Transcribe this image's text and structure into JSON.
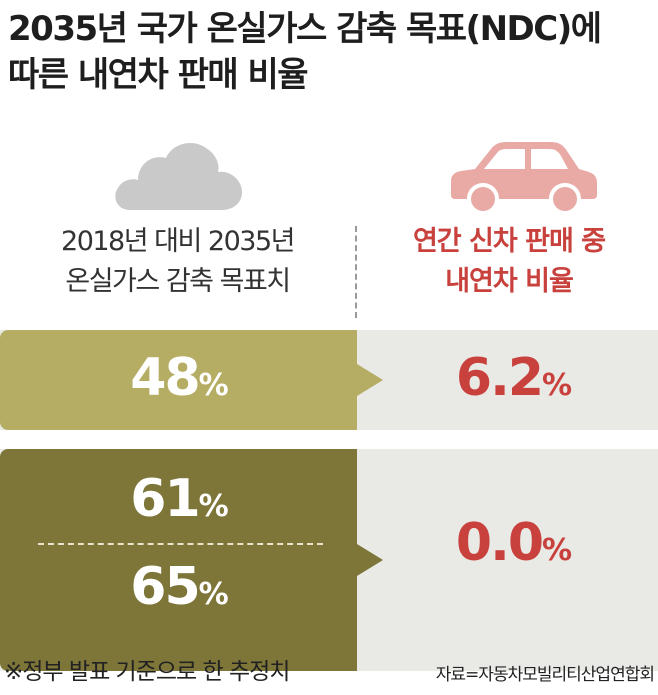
{
  "title": {
    "line1": "2035년 국가 온실가스 감축 목표(NDC)에",
    "line2": "따른 내연차 판매 비율"
  },
  "icons": {
    "left": "cloud-icon",
    "right": "car-icon"
  },
  "left_header": {
    "line1": "2018년 대비 2035년",
    "line2": "온실가스 감축 목표치"
  },
  "right_header": {
    "line1": "연간 신차 판매 중",
    "line2": "내연차 비율"
  },
  "rows": [
    {
      "targets": [
        {
          "value": "48",
          "unit": "%"
        }
      ],
      "share": {
        "value": "6.2",
        "unit": "%"
      }
    },
    {
      "targets": [
        {
          "value": "61",
          "unit": "%"
        },
        {
          "value": "65",
          "unit": "%"
        }
      ],
      "share": {
        "value": "0.0",
        "unit": "%"
      }
    }
  ],
  "footer": {
    "note": "※정부 발표 기준으로 한 추정치",
    "source": "자료=자동차모빌리티산업연합회"
  },
  "colors": {
    "light_olive": "#b5ad64",
    "dark_olive": "#7d7638",
    "accent_red": "#c8413d",
    "band_gray": "#e9e9e6",
    "cloud_gray": "#c9c9c9",
    "car_pink": "#e9aaa6"
  }
}
